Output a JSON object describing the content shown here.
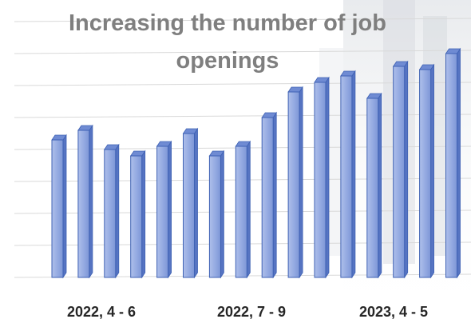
{
  "chart_data": {
    "type": "bar",
    "title": "Increasing the number of job openings",
    "xlabel": "",
    "ylabel": "",
    "category_labels": [
      "2022, 4 - 6",
      "2022, 7 - 9",
      "2023, 4 - 5"
    ],
    "values": [
      43,
      46,
      40,
      38,
      41,
      45,
      38,
      41,
      50,
      58,
      61,
      63,
      56,
      66,
      65,
      70
    ],
    "ylim": [
      0,
      80
    ],
    "grid": true,
    "legend": "none",
    "bar_color": "#8ea6e0",
    "bar_edge_color": "#3f62b4",
    "title_color": "#7f7f7f"
  }
}
